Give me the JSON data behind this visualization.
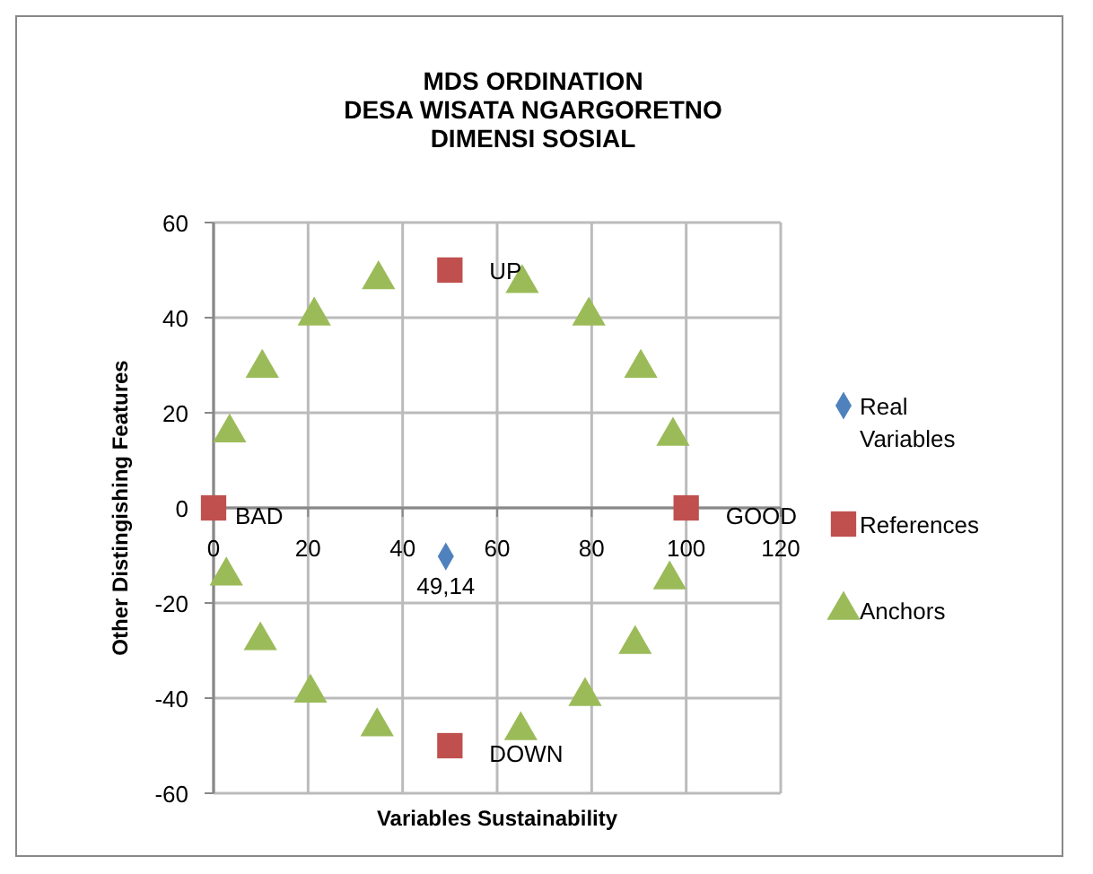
{
  "chart_data": {
    "type": "scatter",
    "title": "MDS ORDINATION\nDESA WISATA NGARGORETNO\nDIMENSI SOSIAL",
    "xlabel": "Variables Sustainability",
    "ylabel": "Other Distingishing Features",
    "xlim": [
      0,
      120
    ],
    "xticks": [
      0,
      20,
      40,
      60,
      80,
      100,
      120
    ],
    "ylim": [
      -60,
      60
    ],
    "yticks": [
      -60,
      -40,
      -20,
      0,
      20,
      40,
      60
    ],
    "grid": true,
    "legend": "right",
    "series": [
      {
        "name": "Real\nVariables",
        "color": "#4f81bd",
        "marker": "diamond",
        "x": [
          49.14
        ],
        "values": [
          -10.2
        ]
      },
      {
        "name": "References",
        "color": "#c0504d",
        "marker": "square",
        "x": [
          50,
          0,
          100,
          50
        ],
        "values": [
          50,
          0,
          0,
          -50
        ]
      },
      {
        "name": "Anchors",
        "color": "#9bbb59",
        "marker": "triangle",
        "x": [
          21.3,
          34.9,
          10.3,
          3.4,
          2.7,
          9.9,
          20.5,
          34.6,
          65.3,
          79.4,
          90.4,
          97.2,
          96.5,
          89.2,
          78.6,
          65
        ],
        "values": [
          40.4,
          48,
          29.4,
          15.8,
          -14.3,
          -27.9,
          -38.9,
          -46,
          47.2,
          40.4,
          29.4,
          15.1,
          -15.1,
          -28.7,
          -39.6,
          -46.8
        ]
      }
    ],
    "annotations": [
      {
        "text": "UP",
        "x": 50,
        "y": 50
      },
      {
        "text": "BAD",
        "x": 0,
        "y": 0
      },
      {
        "text": "GOOD",
        "x": 100,
        "y": 0
      },
      {
        "text": "DOWN",
        "x": 50,
        "y": -50
      },
      {
        "text": "49,14",
        "x": 49.14,
        "y": -10.2
      }
    ]
  }
}
